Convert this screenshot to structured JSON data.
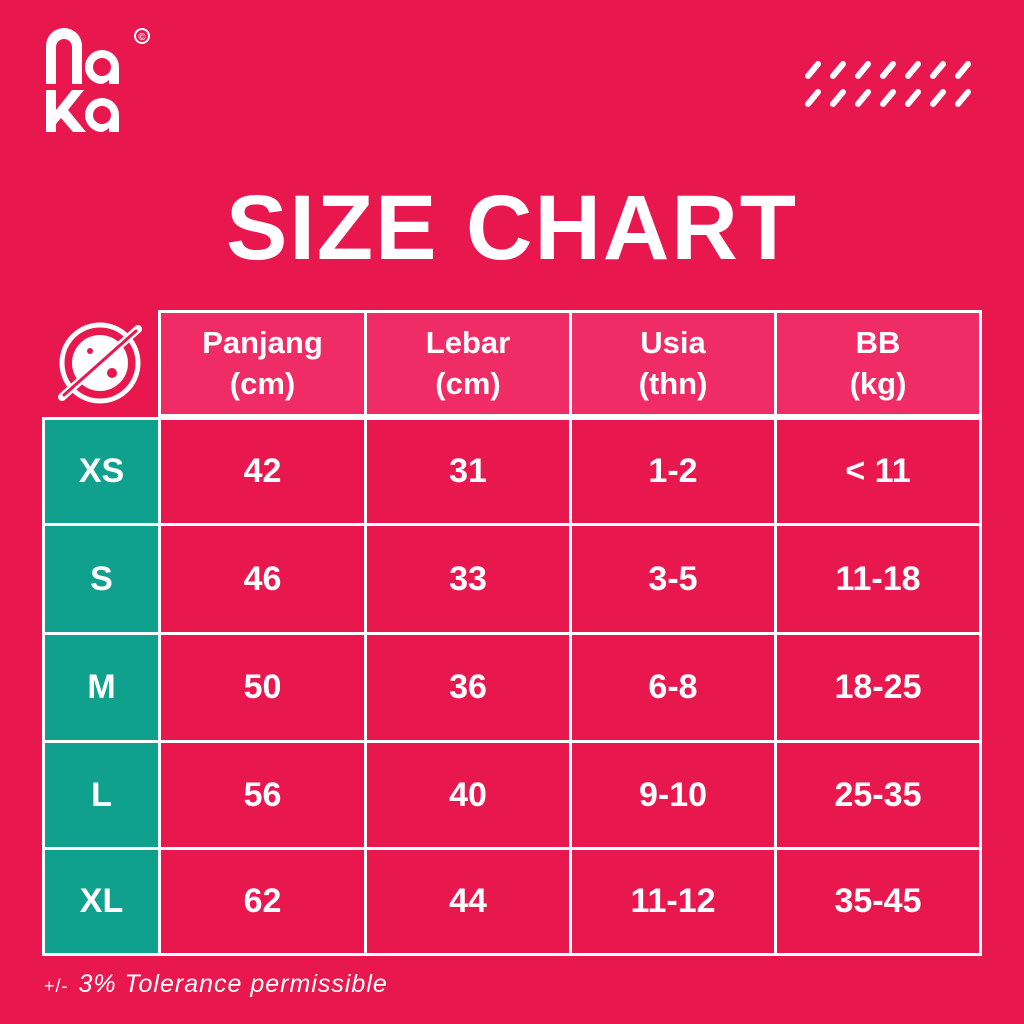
{
  "brand": {
    "logo_text": "naka",
    "copyright_mark": "©"
  },
  "title": "SIZE CHART",
  "table": {
    "headers": [
      {
        "line1": "Panjang",
        "line2": "(cm)"
      },
      {
        "line1": "Lebar",
        "line2": "(cm)"
      },
      {
        "line1": "Usia",
        "line2": "(thn)"
      },
      {
        "line1": "BB",
        "line2": "(kg)"
      }
    ],
    "rows": [
      {
        "size": "XS",
        "cells": [
          "42",
          "31",
          "1-2",
          "< 11"
        ]
      },
      {
        "size": "S",
        "cells": [
          "46",
          "33",
          "3-5",
          "11-18"
        ]
      },
      {
        "size": "M",
        "cells": [
          "50",
          "36",
          "6-8",
          "18-25"
        ]
      },
      {
        "size": "L",
        "cells": [
          "56",
          "40",
          "9-10",
          "25-35"
        ]
      },
      {
        "size": "XL",
        "cells": [
          "62",
          "44",
          "11-12",
          "35-45"
        ]
      }
    ]
  },
  "note": {
    "prefix": "+/-",
    "text": "3% Tolerance permissible"
  },
  "colors": {
    "background": "#e8184f",
    "header": "#ef2c66",
    "size_column": "#10a08e",
    "border": "#ffffff"
  },
  "icons": {
    "logo": "naka-logo",
    "decoration": "diagonal-stripes-icon",
    "badge": "planet-ring-icon"
  }
}
